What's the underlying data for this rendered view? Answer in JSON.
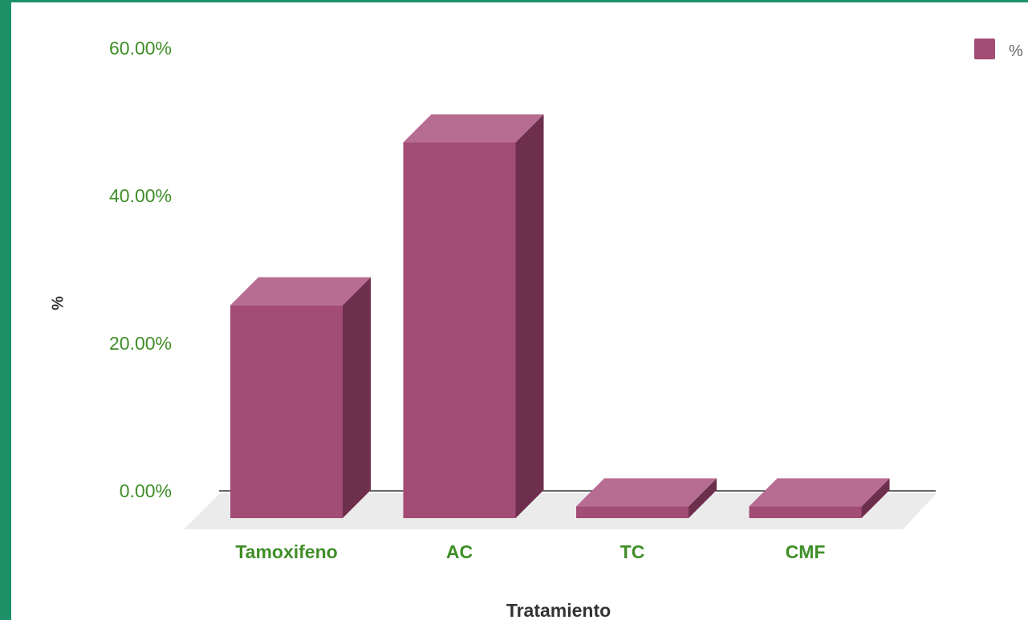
{
  "chart_data": {
    "type": "bar",
    "style": "3d",
    "title": "",
    "xlabel": "Tratamiento",
    "ylabel": "%",
    "categories": [
      "Tamoxifeno",
      "AC",
      "TC",
      "CMF"
    ],
    "series": [
      {
        "name": "%",
        "values": [
          29.0,
          51.2,
          1.6,
          1.6
        ]
      }
    ],
    "ylim": [
      0,
      60
    ],
    "yticks": [
      {
        "value": 0,
        "label": "0.00%"
      },
      {
        "value": 20,
        "label": "20.00%"
      },
      {
        "value": 40,
        "label": "40.00%"
      },
      {
        "value": 60,
        "label": "60.00%"
      }
    ],
    "grid": false,
    "legend": "top-right"
  },
  "colors": {
    "bar_front": "#a34c75",
    "bar_top": "#b66d91",
    "bar_side": "#6e2f4d",
    "floor": "#ebebeb",
    "axis_line": "#333333",
    "tick_text": "#3f8e27",
    "category_text": "#3f8e27",
    "axis_title_text": "#333333",
    "legend_text": "#666666"
  }
}
